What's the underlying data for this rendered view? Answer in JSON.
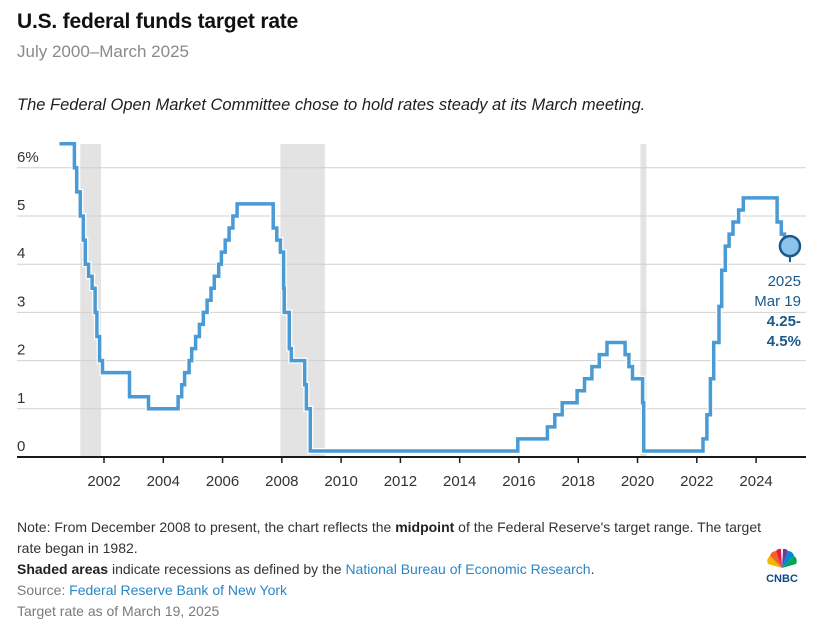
{
  "header": {
    "title": "U.S. federal funds target rate",
    "subtitle": "July 2000–March 2025",
    "dek": "The Federal Open Market Committee chose to hold rates steady at its March meeting."
  },
  "colors": {
    "line": "#4a9ad6",
    "recession": "#e3e3e3",
    "grid": "#d0d0d0",
    "axis": "#1a1a1a",
    "annotation": "#1a5a8a",
    "link": "#2a86c4"
  },
  "chart_data": {
    "type": "line",
    "step": true,
    "title": "U.S. federal funds target rate",
    "subtitle": "July 2000–March 2025",
    "xlabel": "",
    "ylabel": "",
    "xlim": [
      2000.5,
      2025.25
    ],
    "ylim": [
      0,
      6.5
    ],
    "grid": true,
    "y_ticks": [
      0,
      1,
      2,
      3,
      4,
      5,
      6
    ],
    "y_tick_labels": [
      "0",
      "1",
      "2",
      "3",
      "4",
      "5",
      "6%"
    ],
    "x_ticks": [
      2002,
      2004,
      2006,
      2008,
      2010,
      2012,
      2014,
      2016,
      2018,
      2020,
      2022,
      2024
    ],
    "x_tick_labels": [
      "2002",
      "2004",
      "2006",
      "2008",
      "2010",
      "2012",
      "2014",
      "2016",
      "2018",
      "2020",
      "2022",
      "2024"
    ],
    "recessions": [
      {
        "start": 2001.2,
        "end": 2001.9
      },
      {
        "start": 2007.95,
        "end": 2009.45
      },
      {
        "start": 2020.1,
        "end": 2020.3
      }
    ],
    "series": [
      {
        "name": "Federal funds target rate",
        "points": [
          [
            2000.5,
            6.5
          ],
          [
            2001.0,
            6.0
          ],
          [
            2001.08,
            5.5
          ],
          [
            2001.2,
            5.0
          ],
          [
            2001.3,
            4.5
          ],
          [
            2001.37,
            4.0
          ],
          [
            2001.48,
            3.75
          ],
          [
            2001.6,
            3.5
          ],
          [
            2001.7,
            3.0
          ],
          [
            2001.76,
            2.5
          ],
          [
            2001.85,
            2.0
          ],
          [
            2001.95,
            1.75
          ],
          [
            2002.86,
            1.25
          ],
          [
            2003.5,
            1.0
          ],
          [
            2004.5,
            1.25
          ],
          [
            2004.62,
            1.5
          ],
          [
            2004.72,
            1.75
          ],
          [
            2004.87,
            2.0
          ],
          [
            2004.96,
            2.25
          ],
          [
            2005.09,
            2.5
          ],
          [
            2005.22,
            2.75
          ],
          [
            2005.35,
            3.0
          ],
          [
            2005.48,
            3.25
          ],
          [
            2005.61,
            3.5
          ],
          [
            2005.72,
            3.75
          ],
          [
            2005.87,
            4.0
          ],
          [
            2005.96,
            4.25
          ],
          [
            2006.09,
            4.5
          ],
          [
            2006.22,
            4.75
          ],
          [
            2006.35,
            5.0
          ],
          [
            2006.49,
            5.25
          ],
          [
            2007.71,
            4.75
          ],
          [
            2007.83,
            4.5
          ],
          [
            2007.95,
            4.25
          ],
          [
            2008.06,
            3.5
          ],
          [
            2008.08,
            3.0
          ],
          [
            2008.25,
            2.25
          ],
          [
            2008.32,
            2.0
          ],
          [
            2008.77,
            1.5
          ],
          [
            2008.83,
            1.0
          ],
          [
            2008.96,
            0.125
          ],
          [
            2015.96,
            0.375
          ],
          [
            2016.96,
            0.625
          ],
          [
            2017.21,
            0.875
          ],
          [
            2017.46,
            1.125
          ],
          [
            2017.96,
            1.375
          ],
          [
            2018.21,
            1.625
          ],
          [
            2018.46,
            1.875
          ],
          [
            2018.71,
            2.125
          ],
          [
            2018.97,
            2.375
          ],
          [
            2019.58,
            2.125
          ],
          [
            2019.71,
            1.875
          ],
          [
            2019.83,
            1.625
          ],
          [
            2020.17,
            1.125
          ],
          [
            2020.21,
            0.125
          ],
          [
            2022.21,
            0.375
          ],
          [
            2022.34,
            0.875
          ],
          [
            2022.46,
            1.625
          ],
          [
            2022.57,
            2.375
          ],
          [
            2022.75,
            3.125
          ],
          [
            2022.84,
            3.875
          ],
          [
            2022.96,
            4.375
          ],
          [
            2023.09,
            4.625
          ],
          [
            2023.22,
            4.875
          ],
          [
            2023.41,
            5.125
          ],
          [
            2023.57,
            5.375
          ],
          [
            2024.71,
            4.875
          ],
          [
            2024.85,
            4.625
          ],
          [
            2024.96,
            4.375
          ],
          [
            2025.21,
            4.375
          ]
        ]
      }
    ],
    "annotation": {
      "x": 2025.21,
      "y": 4.375,
      "year": "2025",
      "date": "Mar 19",
      "value_line1": "4.25-",
      "value_line2": "4.5%"
    }
  },
  "footer": {
    "note_prefix": "Note: From December 2008 to present, the chart reflects the ",
    "note_bold": "midpoint",
    "note_suffix": " of the Federal Reserve's target range. The target rate began in 1982.",
    "shaded_bold": "Shaded areas",
    "shaded_text": " indicate recessions as defined by the ",
    "shaded_link": "National Bureau of Economic Research",
    "shaded_end": ".",
    "source_label": "Source: ",
    "source_link": "Federal Reserve Bank of New York",
    "asof": "Target rate as of March 19, 2025",
    "logo_text": "CNBC"
  }
}
